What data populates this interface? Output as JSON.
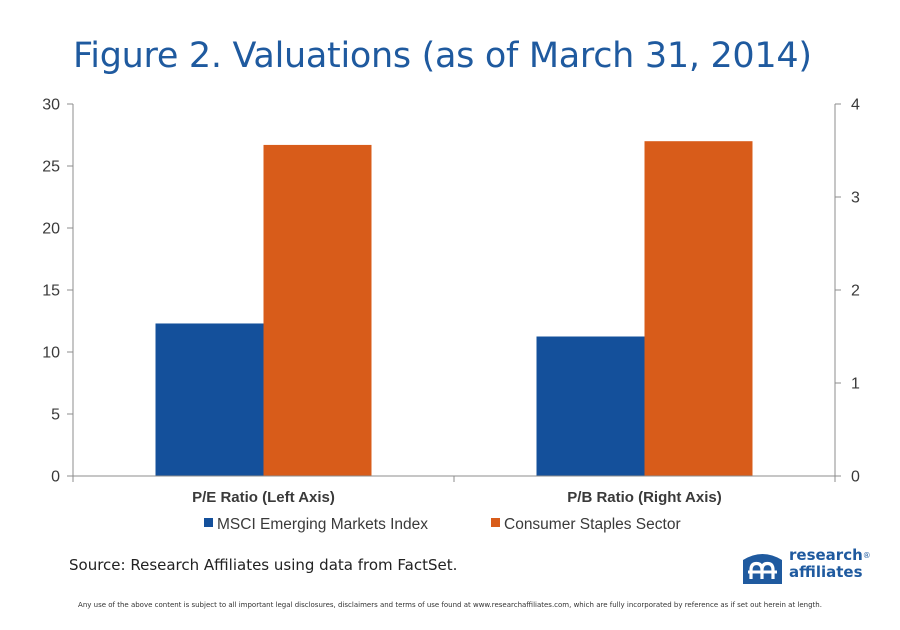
{
  "title": "Figure 2. Valuations (as of March 31, 2014)",
  "source": "Source: Research Affiliates using data from FactSet.",
  "logo": {
    "line1": "research",
    "line2": "affiliates",
    "mark": "®",
    "color": "#1f5a9f"
  },
  "disclaimer": "Any use of the above content is subject to all important legal disclosures, disclaimers and terms of use found at www.researchaffiliates.com, which are fully incorporated by reference as if set out herein at length.",
  "chart_data": {
    "type": "bar",
    "categories": [
      "P/E Ratio (Left Axis)",
      "P/B Ratio (Right Axis)"
    ],
    "series": [
      {
        "name": "MSCI Emerging Markets Index",
        "color": "#14509b",
        "values": [
          12.3,
          1.5
        ]
      },
      {
        "name": "Consumer Staples Sector",
        "color": "#d85c1a",
        "values": [
          26.7,
          3.6
        ]
      }
    ],
    "value_axis_per_category": [
      "left",
      "right"
    ],
    "left_axis": {
      "ylim": [
        0,
        30
      ],
      "ticks": [
        "0",
        "5",
        "10",
        "15",
        "20",
        "25",
        "30"
      ]
    },
    "right_axis": {
      "ylim": [
        0,
        4
      ],
      "ticks": [
        "0",
        "1",
        "2",
        "3",
        "4"
      ]
    },
    "grid": false,
    "legend_position": "bottom"
  }
}
